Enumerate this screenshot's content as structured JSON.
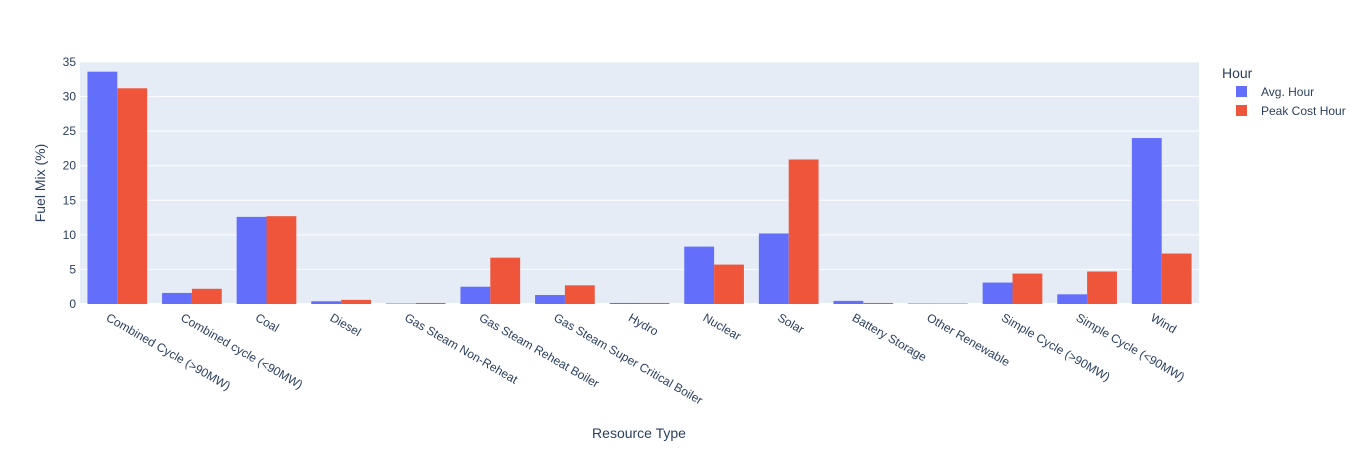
{
  "chart_data": {
    "type": "bar",
    "barmode": "group",
    "xlabel": "Resource Type",
    "ylabel": "Fuel Mix (%)",
    "ylim": [
      0,
      35
    ],
    "yticks": [
      "0",
      "5",
      "10",
      "15",
      "20",
      "25",
      "30",
      "35"
    ],
    "grid": true,
    "legend": {
      "title": "Hour",
      "placement": "top-right-outside"
    },
    "categories": [
      "Combined Cycle (>90MW)",
      "Combined cycle (<90MW)",
      "Coal",
      "Diesel",
      "Gas Steam Non-Reheat",
      "Gas Steam Reheat Boiler",
      "Gas Steam Super Critical Boiler",
      "Hydro",
      "Nuclear",
      "Solar",
      "Battery Storage",
      "Other Renewable",
      "Simple Cycle (>90MW)",
      "Simple Cycle (<90MW)",
      "Wind"
    ],
    "series": [
      {
        "name": "Avg. Hour",
        "color": "#636efa",
        "values": [
          33.6,
          1.6,
          12.6,
          0.4,
          0.05,
          2.5,
          1.3,
          0.15,
          8.3,
          10.2,
          0.45,
          0.05,
          3.1,
          1.4,
          24.0
        ]
      },
      {
        "name": "Peak Cost Hour",
        "color": "#ef553b",
        "values": [
          31.2,
          2.2,
          12.7,
          0.6,
          0.15,
          6.7,
          2.7,
          0.15,
          5.7,
          20.9,
          0.15,
          0.05,
          4.4,
          4.7,
          7.3
        ]
      }
    ]
  }
}
